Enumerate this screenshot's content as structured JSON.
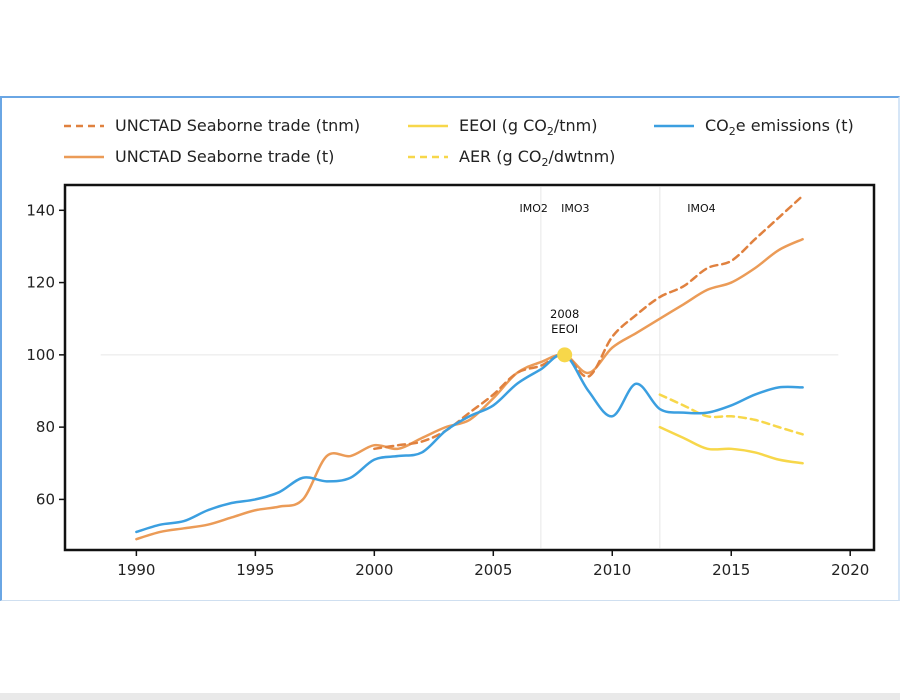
{
  "chart_data": {
    "type": "line",
    "title": "",
    "xlabel": "",
    "ylabel": "",
    "xlim": [
      1987,
      2021
    ],
    "ylim": [
      46,
      147
    ],
    "x_ticks": [
      1990,
      1995,
      2000,
      2005,
      2010,
      2015,
      2020
    ],
    "y_ticks": [
      60,
      80,
      100,
      120,
      140
    ],
    "grid": false,
    "legend_position": "top",
    "legend": [
      {
        "key": "trade_tnm",
        "parts": [
          {
            "t": "UNCTAD Seaborne trade (tnm)"
          }
        ]
      },
      {
        "key": "trade_t",
        "parts": [
          {
            "t": "UNCTAD Seaborne trade (t)"
          }
        ]
      },
      {
        "key": "eeoi",
        "parts": [
          {
            "t": "EEOI (g CO"
          },
          {
            "t": "2",
            "sub": true
          },
          {
            "t": "/tnm)"
          }
        ]
      },
      {
        "key": "aer",
        "parts": [
          {
            "t": "AER (g CO"
          },
          {
            "t": "2",
            "sub": true
          },
          {
            "t": "/dwtnm)"
          }
        ]
      },
      {
        "key": "co2e",
        "parts": [
          {
            "t": "CO"
          },
          {
            "t": "2",
            "sub": true
          },
          {
            "t": "e emissions (t)"
          }
        ]
      }
    ],
    "series": [
      {
        "key": "trade_tnm",
        "name": "UNCTAD Seaborne trade (tnm)",
        "color": "#e0813f",
        "dash": "dashed",
        "x": [
          2000,
          2001,
          2002,
          2003,
          2004,
          2005,
          2006,
          2007,
          2008,
          2009,
          2010,
          2011,
          2012,
          2013,
          2014,
          2015,
          2016,
          2017,
          2018
        ],
        "y": [
          74,
          75,
          76,
          79,
          84,
          89,
          95,
          97,
          100,
          94,
          105,
          111,
          116,
          119,
          124,
          126,
          132,
          138,
          144
        ]
      },
      {
        "key": "trade_t",
        "name": "UNCTAD Seaborne trade (t)",
        "color": "#eb9b57",
        "dash": "solid",
        "x": [
          1990,
          1991,
          1992,
          1993,
          1994,
          1995,
          1996,
          1997,
          1998,
          1999,
          2000,
          2001,
          2002,
          2003,
          2004,
          2005,
          2006,
          2007,
          2008,
          2009,
          2010,
          2011,
          2012,
          2013,
          2014,
          2015,
          2016,
          2017,
          2018
        ],
        "y": [
          49,
          51,
          52,
          53,
          55,
          57,
          58,
          60,
          72,
          72,
          75,
          74,
          77,
          80,
          82,
          88,
          95,
          98,
          100,
          95,
          102,
          106,
          110,
          114,
          118,
          120,
          124,
          129,
          132
        ]
      },
      {
        "key": "eeoi",
        "name": "EEOI (g CO2/tnm)",
        "color": "#f7d74a",
        "dash": "solid",
        "x": [
          2012,
          2013,
          2014,
          2015,
          2016,
          2017,
          2018
        ],
        "y": [
          80,
          77,
          74,
          74,
          73,
          71,
          70
        ]
      },
      {
        "key": "aer",
        "name": "AER (g CO2/dwtnm)",
        "color": "#f7d74a",
        "dash": "dashed",
        "x": [
          2012,
          2013,
          2014,
          2015,
          2016,
          2017,
          2018
        ],
        "y": [
          89,
          86,
          83,
          83,
          82,
          80,
          78
        ]
      },
      {
        "key": "co2e",
        "name": "CO2e emissions (t)",
        "color": "#3b9fe0",
        "dash": "solid",
        "x": [
          1990,
          1991,
          1992,
          1993,
          1994,
          1995,
          1996,
          1997,
          1998,
          1999,
          2000,
          2001,
          2002,
          2003,
          2004,
          2005,
          2006,
          2007,
          2008,
          2009,
          2010,
          2011,
          2012,
          2013,
          2014,
          2015,
          2016,
          2017,
          2018
        ],
        "y": [
          51,
          53,
          54,
          57,
          59,
          60,
          62,
          66,
          65,
          66,
          71,
          72,
          73,
          79,
          83,
          86,
          92,
          96,
          100,
          90,
          83,
          92,
          85,
          84,
          84,
          86,
          89,
          91,
          91
        ]
      }
    ],
    "reference_line": {
      "y": 100,
      "x_from": 1988.5,
      "x_to": 2019.5
    },
    "phases": [
      {
        "label": "IMO2",
        "x_label": 2006.1,
        "boundary": 2007
      },
      {
        "label": "IMO3",
        "x_label": 2007.85,
        "boundary": 2012
      },
      {
        "label": "IMO4",
        "x_label": 2013.15,
        "boundary": null
      }
    ],
    "marker": {
      "x": 2008,
      "y": 100,
      "color": "#f7d74a"
    },
    "annotation": {
      "lines": [
        "2008",
        "EEOI"
      ]
    }
  }
}
